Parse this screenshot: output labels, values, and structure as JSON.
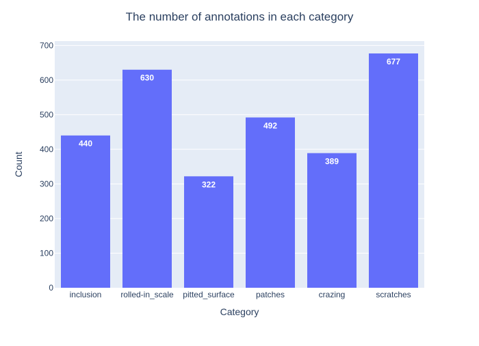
{
  "chart_data": {
    "type": "bar",
    "title": "The number of annotations in each category",
    "xlabel": "Category",
    "ylabel": "Count",
    "categories": [
      "inclusion",
      "rolled-in_scale",
      "pitted_surface",
      "patches",
      "crazing",
      "scratches"
    ],
    "values": [
      440,
      630,
      322,
      492,
      389,
      677
    ],
    "ylim": [
      0,
      712.63
    ],
    "yticks": [
      0,
      100,
      200,
      300,
      400,
      500,
      600,
      700
    ],
    "grid": true,
    "legend": "none",
    "colors": {
      "bar": "#636efa",
      "plot_background": "#e5ecf6",
      "gridline": "#ffffff",
      "title_text": "#2a3f5f",
      "axis_text": "#2a3f5f",
      "bar_label_text": "#ffffff"
    }
  }
}
